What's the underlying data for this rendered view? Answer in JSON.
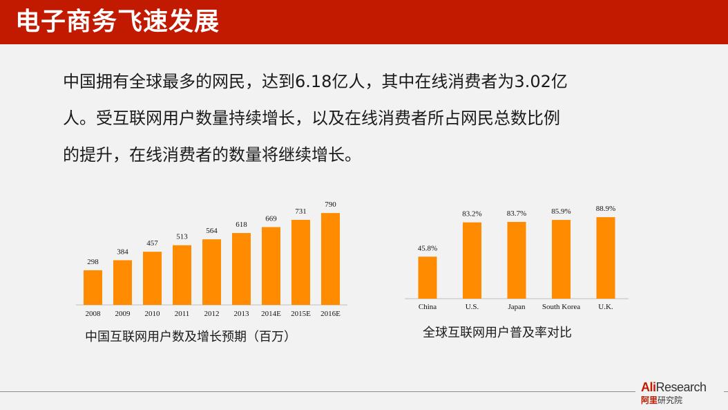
{
  "header": {
    "title": "电子商务飞速发展",
    "color": "#c21a00"
  },
  "paragraph": {
    "lines": [
      "中国拥有全球最多的网民，达到6.18亿人，其中在线消费者为3.02亿",
      "人。受互联网用户数量持续增长，以及在线消费者所占网民总数比例",
      "的提升，在线消费者的数量将继续增长。"
    ]
  },
  "chart_data": [
    {
      "type": "bar",
      "categories": [
        "2008",
        "2009",
        "2010",
        "2011",
        "2012",
        "2013",
        "2014E",
        "2015E",
        "2016E"
      ],
      "values": [
        298,
        384,
        457,
        513,
        564,
        618,
        669,
        731,
        790
      ],
      "data_labels": [
        "298",
        "384",
        "457",
        "513",
        "564",
        "618",
        "669",
        "731",
        "790"
      ],
      "caption": "中国互联网用户数及增长预期（百万）",
      "ylim": [
        0,
        850
      ],
      "grid": false,
      "bar_color": "#ff8c00"
    },
    {
      "type": "bar",
      "categories": [
        "China",
        "U.S.",
        "Japan",
        "South Korea",
        "U.K."
      ],
      "values": [
        45.8,
        83.2,
        83.7,
        85.9,
        88.9
      ],
      "data_labels": [
        "45.8%",
        "83.2%",
        "83.7%",
        "85.9%",
        "88.9%"
      ],
      "caption": "全球互联网用户普及率对比",
      "ylim": [
        0,
        95
      ],
      "grid": false,
      "bar_color": "#ff8c00"
    }
  ],
  "logo": {
    "brand_ali": "Ali",
    "brand_research": "Research",
    "sub_red": "阿里",
    "sub_rest": "研究院"
  }
}
